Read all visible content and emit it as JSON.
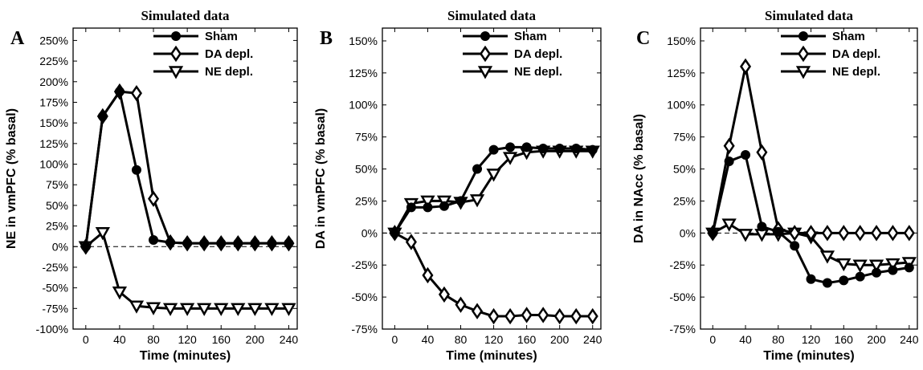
{
  "chart_data": [
    {
      "type": "line",
      "panel_letter": "A",
      "title": "Simulated data",
      "xlabel": "Time (minutes)",
      "ylabel": "NE in vmPFC (% basal)",
      "x": [
        0,
        20,
        40,
        60,
        80,
        100,
        120,
        140,
        160,
        180,
        200,
        220,
        240
      ],
      "xlim": [
        -15,
        250
      ],
      "ylim": [
        -100,
        265
      ],
      "xticks": [
        0,
        40,
        80,
        120,
        160,
        200,
        240
      ],
      "yticks": [
        -100,
        -75,
        -50,
        -25,
        0,
        25,
        50,
        75,
        100,
        125,
        150,
        175,
        200,
        225,
        250
      ],
      "ytick_suffix": "%",
      "baseline": 0,
      "legend_position": "top-right",
      "series": [
        {
          "name": "Sham",
          "marker": "circle",
          "values": [
            0,
            158,
            188,
            93,
            8,
            5,
            4,
            4,
            4,
            4,
            4,
            4,
            4
          ]
        },
        {
          "name": "DA depl.",
          "marker": "diamond",
          "values": [
            0,
            158,
            188,
            186,
            58,
            5,
            4,
            4,
            4,
            4,
            4,
            4,
            4
          ]
        },
        {
          "name": "NE depl.",
          "marker": "triangle-down",
          "values": [
            0,
            17,
            -55,
            -72,
            -74,
            -75,
            -75,
            -75,
            -75,
            -75,
            -75,
            -75,
            -75
          ]
        }
      ]
    },
    {
      "type": "line",
      "panel_letter": "B",
      "title": "Simulated data",
      "xlabel": "Time (minutes)",
      "ylabel": "DA in vmPFC (% basal)",
      "x": [
        0,
        20,
        40,
        60,
        80,
        100,
        120,
        140,
        160,
        180,
        200,
        220,
        240
      ],
      "xlim": [
        -15,
        250
      ],
      "ylim": [
        -75,
        160
      ],
      "xticks": [
        0,
        40,
        80,
        120,
        160,
        200,
        240
      ],
      "yticks": [
        -75,
        -50,
        -25,
        0,
        25,
        50,
        75,
        100,
        125,
        150
      ],
      "ytick_suffix": "%",
      "baseline": 0,
      "legend_position": "top-right",
      "series": [
        {
          "name": "Sham",
          "marker": "circle",
          "values": [
            0,
            20,
            20,
            21,
            25,
            50,
            65,
            67,
            67,
            66,
            66,
            66,
            65
          ]
        },
        {
          "name": "DA depl.",
          "marker": "diamond",
          "values": [
            0,
            -7,
            -33,
            -48,
            -56,
            -61,
            -65,
            -65,
            -64,
            -64,
            -65,
            -65,
            -65
          ]
        },
        {
          "name": "NE depl.",
          "marker": "triangle-down",
          "values": [
            0,
            23,
            25,
            25,
            24,
            26,
            46,
            59,
            63,
            64,
            64,
            64,
            64
          ]
        }
      ]
    },
    {
      "type": "line",
      "panel_letter": "C",
      "title": "Simulated data",
      "xlabel": "Time (minutes)",
      "ylabel": "DA in NAcc (% basal)",
      "x": [
        0,
        20,
        40,
        60,
        80,
        100,
        120,
        140,
        160,
        180,
        200,
        220,
        240
      ],
      "xlim": [
        -15,
        250
      ],
      "ylim": [
        -75,
        160
      ],
      "xticks": [
        0,
        40,
        80,
        120,
        160,
        200,
        240
      ],
      "yticks": [
        -75,
        -50,
        -25,
        0,
        25,
        50,
        75,
        100,
        125,
        150
      ],
      "ytick_suffix": "%",
      "baseline": 0,
      "legend_position": "top-right",
      "series": [
        {
          "name": "Sham",
          "marker": "circle",
          "values": [
            0,
            56,
            61,
            5,
            1,
            -10,
            -36,
            -39,
            -37,
            -34,
            -31,
            -29,
            -27
          ]
        },
        {
          "name": "DA depl.",
          "marker": "diamond",
          "values": [
            0,
            68,
            130,
            63,
            3,
            0,
            0,
            0,
            0,
            0,
            0,
            0,
            0
          ]
        },
        {
          "name": "NE depl.",
          "marker": "triangle-down",
          "values": [
            0,
            7,
            -1,
            -1,
            -1,
            0,
            -3,
            -18,
            -24,
            -25,
            -25,
            -24,
            -23
          ]
        }
      ]
    }
  ]
}
